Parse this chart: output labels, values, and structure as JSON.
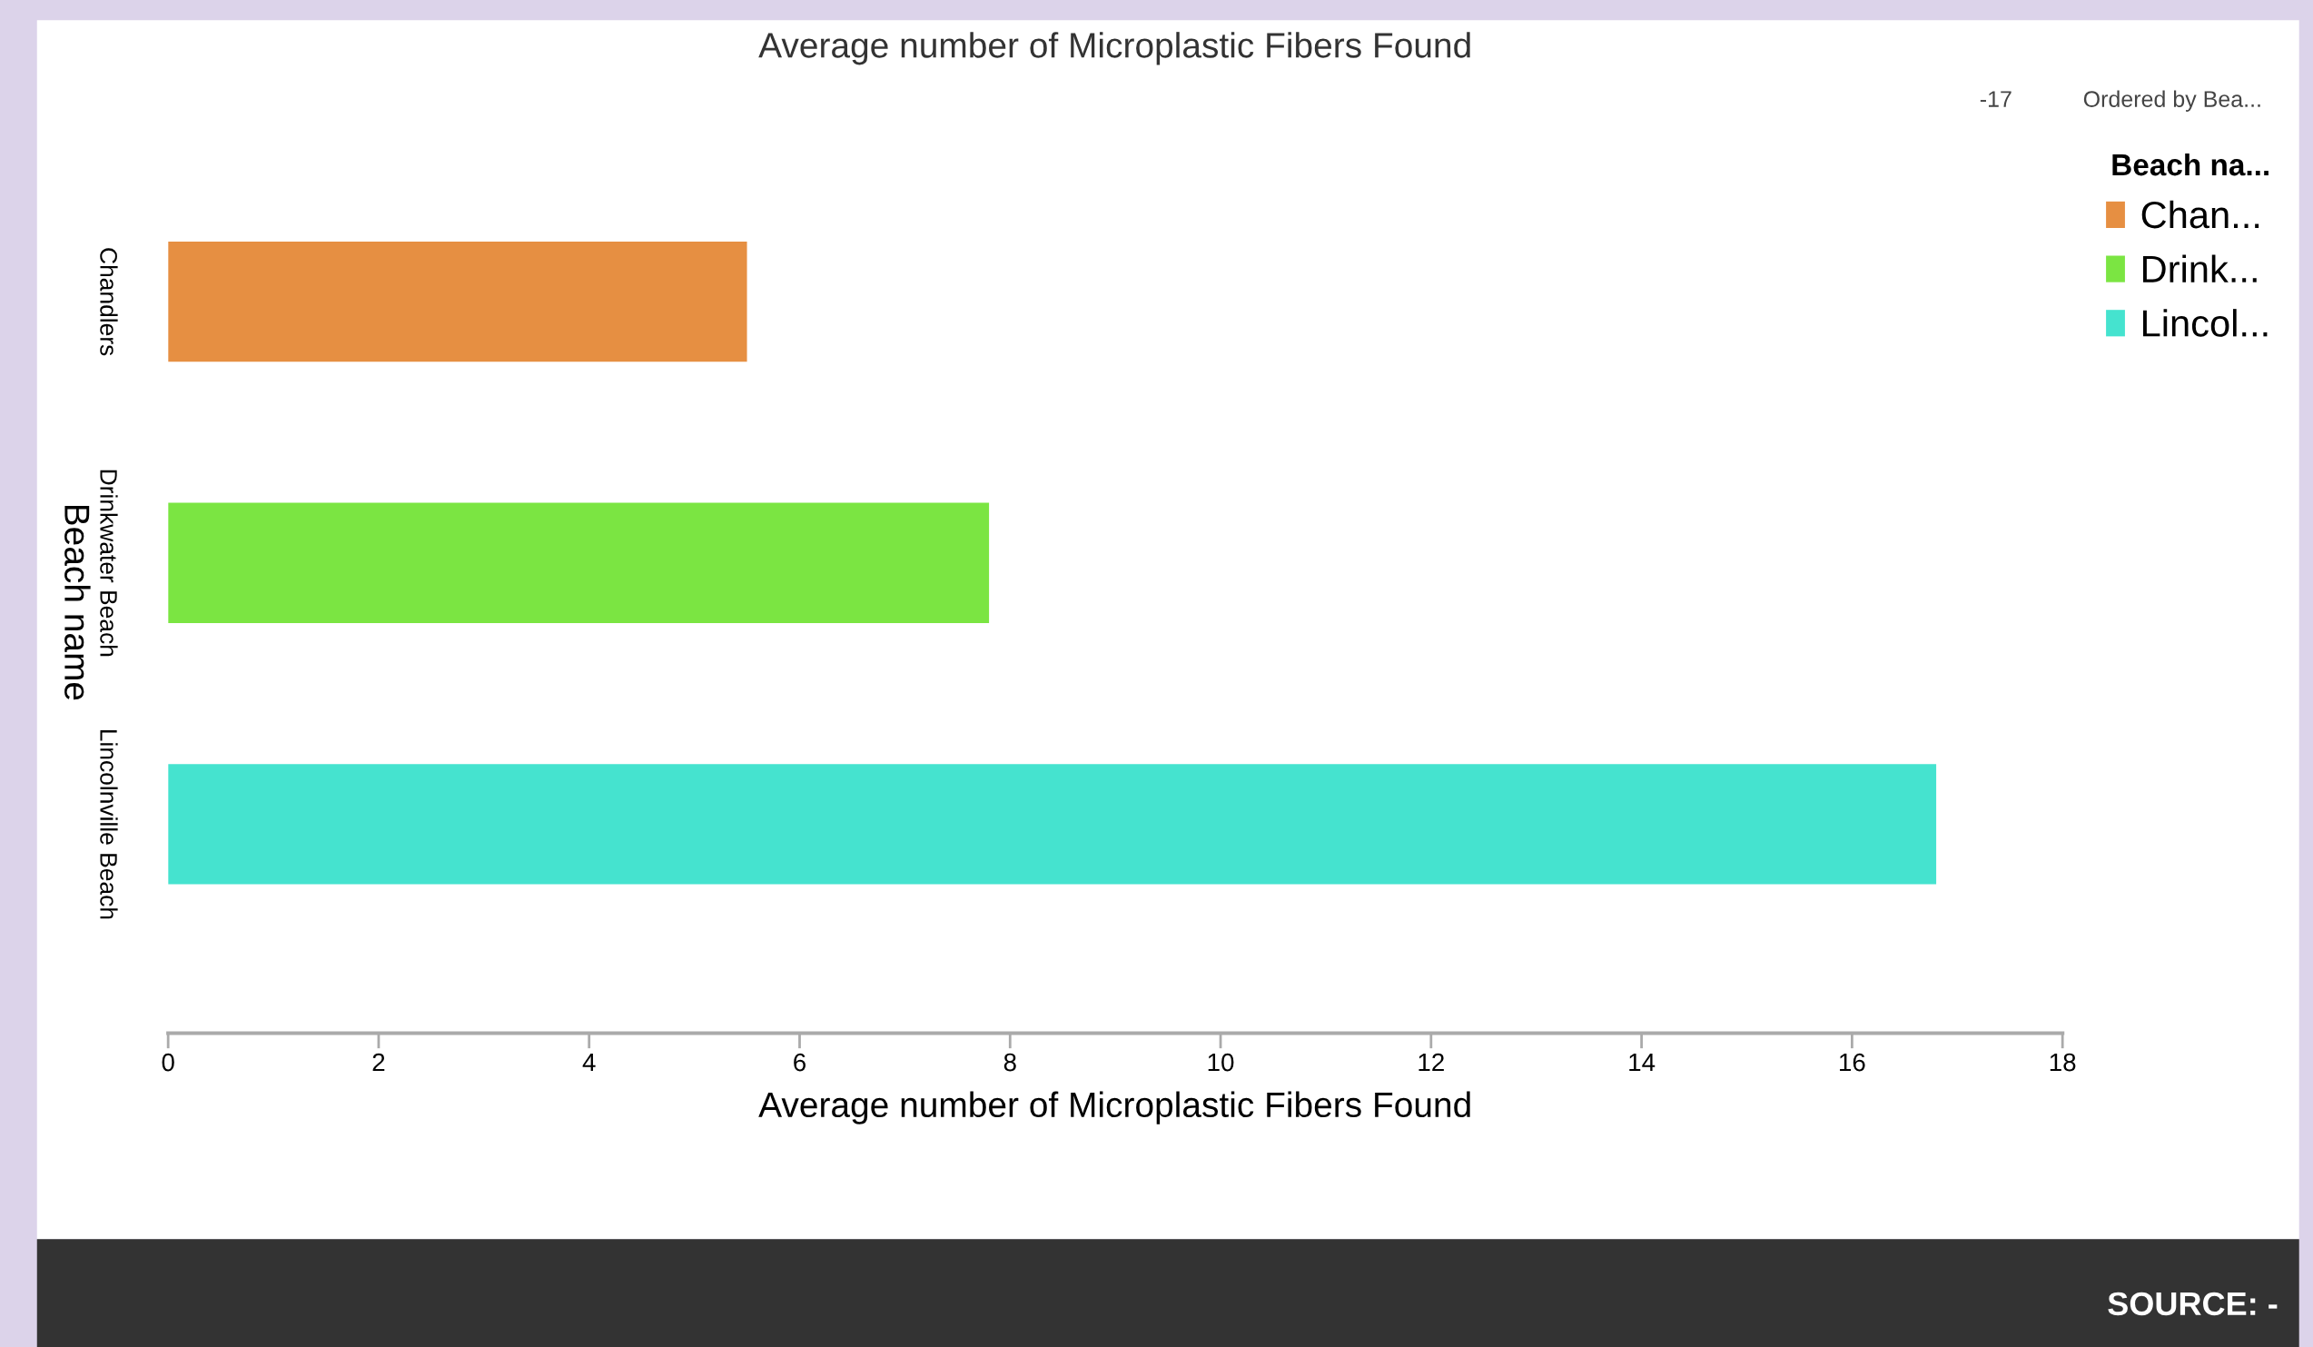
{
  "chart_data": {
    "type": "bar",
    "orientation": "horizontal",
    "title": "Average number of Microplastic Fibers Found",
    "xlabel": "Average number of Microplastic Fibers Found",
    "ylabel": "Beach name",
    "legend_title": "Beach na...",
    "categories": [
      "Chandlers",
      "Drinkwater Beach",
      "Lincolnville Beach"
    ],
    "series": [
      {
        "name": "Chan...",
        "color": "#e68f42",
        "values": [
          5.5,
          null,
          null
        ]
      },
      {
        "name": "Drink...",
        "color": "#7be542",
        "values": [
          null,
          7.8,
          null
        ]
      },
      {
        "name": "Lincol...",
        "color": "#45e3cf",
        "values": [
          null,
          null,
          16.8
        ]
      }
    ],
    "xlim": [
      0,
      18
    ],
    "xticks": [
      0,
      2,
      4,
      6,
      8,
      10,
      12,
      14,
      16,
      18
    ],
    "grid": false,
    "legend": "right",
    "annotations": [
      "-17",
      "Ordered by Bea...",
      "SOURCE: -"
    ]
  }
}
